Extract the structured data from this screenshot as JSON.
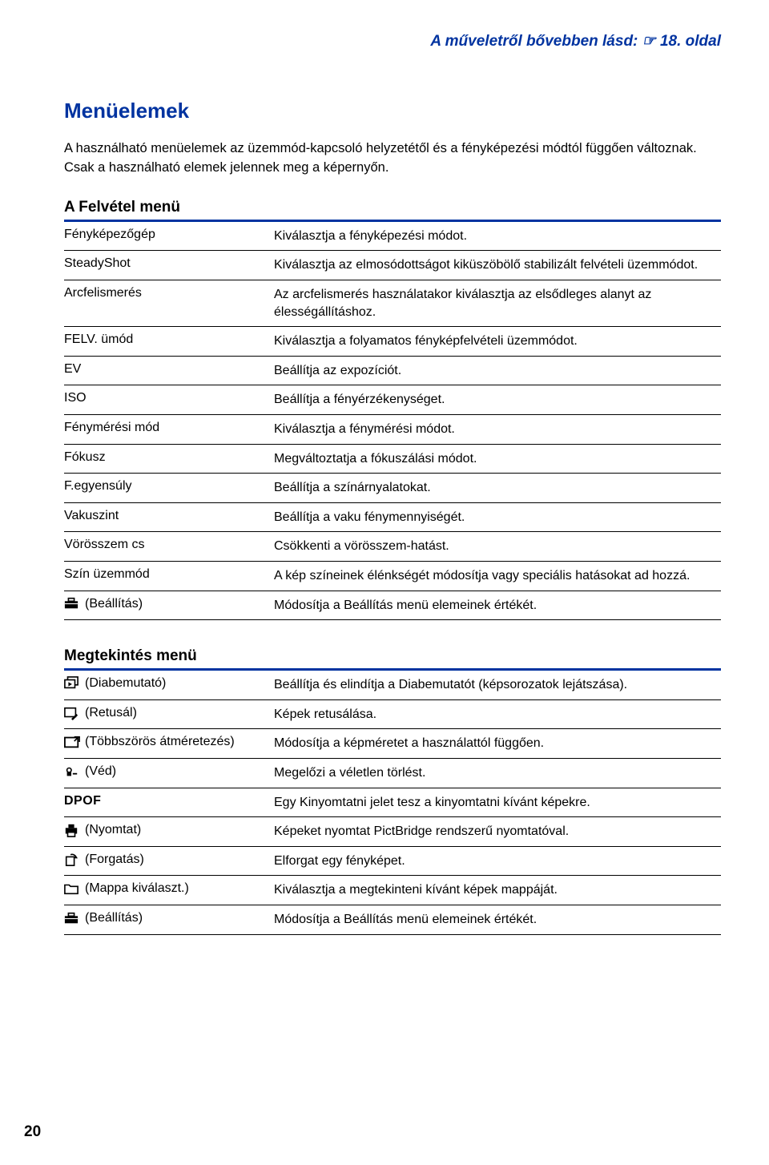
{
  "topRight": "A műveletről bővebben lásd: ☞ 18. oldal",
  "sectionTitle": "Menüelemek",
  "intro": "A használható menüelemek az üzemmód-kapcsoló helyzetétől és a fényképezési módtól függően változnak. Csak a használható elemek jelennek meg a képernyőn.",
  "recordingTitle": "A Felvétel menü",
  "recordingRows": [
    {
      "label": "Fényképezőgép",
      "desc": "Kiválasztja a fényképezési módot."
    },
    {
      "label": "SteadyShot",
      "desc": "Kiválasztja az elmosódottságot kiküszöbölő stabilizált felvételi üzemmódot."
    },
    {
      "label": "Arcfelismerés",
      "desc": "Az arcfelismerés használatakor kiválasztja az elsődleges alanyt az élességállításhoz."
    },
    {
      "label": "FELV. ümód",
      "desc": "Kiválasztja a folyamatos fényképfelvételi üzemmódot."
    },
    {
      "label": "EV",
      "desc": "Beállítja az expozíciót."
    },
    {
      "label": "ISO",
      "desc": "Beállítja a fényérzékenységet."
    },
    {
      "label": "Fénymérési mód",
      "desc": "Kiválasztja a fénymérési módot."
    },
    {
      "label": "Fókusz",
      "desc": "Megváltoztatja a fókuszálási módot."
    },
    {
      "label": "F.egyensúly",
      "desc": "Beállítja a színárnyalatokat."
    },
    {
      "label": "Vakuszint",
      "desc": "Beállítja a vaku fénymennyiségét."
    },
    {
      "label": "Vörösszem cs",
      "desc": "Csökkenti a vörösszem-hatást."
    },
    {
      "label": "Szín üzemmód",
      "desc": "A kép színeinek élénkségét módosítja vagy speciális hatásokat ad hozzá."
    },
    {
      "icon": "toolbox",
      "label": "(Beállítás)",
      "desc": "Módosítja a Beállítás menü elemeinek értékét."
    }
  ],
  "viewingTitle": "Megtekintés menü",
  "viewingRows": [
    {
      "icon": "slideshow",
      "label": "(Diabemutató)",
      "desc": "Beállítja és elindítja a Diabemutatót (képsorozatok lejátszása)."
    },
    {
      "icon": "retouch",
      "label": "(Retusál)",
      "desc": "Képek retusálása."
    },
    {
      "icon": "resize",
      "label": "(Többszörös átméretezés)",
      "desc": "Módosítja a képméretet a használattól függően."
    },
    {
      "icon": "protect",
      "label": "(Véd)",
      "desc": "Megelőzi a véletlen törlést."
    },
    {
      "icon": "dpof",
      "label": "",
      "desc": "Egy Kinyomtatni jelet tesz a kinyomtatni kívánt képekre."
    },
    {
      "icon": "print",
      "label": "(Nyomtat)",
      "desc": "Képeket nyomtat PictBridge rendszerű nyomtatóval."
    },
    {
      "icon": "rotate",
      "label": "(Forgatás)",
      "desc": "Elforgat egy fényképet."
    },
    {
      "icon": "folder",
      "label": "(Mappa kiválaszt.)",
      "desc": "Kiválasztja a megtekinteni kívánt képek mappáját."
    },
    {
      "icon": "toolbox",
      "label": "(Beállítás)",
      "desc": "Módosítja a Beállítás menü elemeinek értékét."
    }
  ],
  "pageNumber": "20"
}
